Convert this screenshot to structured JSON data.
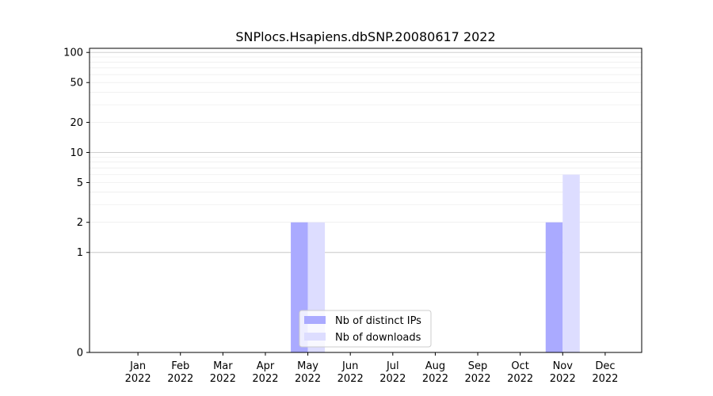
{
  "chart_data": {
    "type": "bar",
    "title": "SNPlocs.Hsapiens.dbSNP.20080617 2022",
    "xlabel": "",
    "ylabel": "",
    "y_scale": "symlog",
    "ylim": [
      0,
      110
    ],
    "y_ticks": [
      0,
      1,
      2,
      5,
      10,
      20,
      50,
      100
    ],
    "y_tick_labels": [
      "0",
      "1",
      "2",
      "5",
      "10",
      "20",
      "50",
      "100"
    ],
    "categories": [
      [
        "Jan",
        "2022"
      ],
      [
        "Feb",
        "2022"
      ],
      [
        "Mar",
        "2022"
      ],
      [
        "Apr",
        "2022"
      ],
      [
        "May",
        "2022"
      ],
      [
        "Jun",
        "2022"
      ],
      [
        "Jul",
        "2022"
      ],
      [
        "Aug",
        "2022"
      ],
      [
        "Sep",
        "2022"
      ],
      [
        "Oct",
        "2022"
      ],
      [
        "Nov",
        "2022"
      ],
      [
        "Dec",
        "2022"
      ]
    ],
    "series": [
      {
        "name": "Nb of distinct IPs",
        "color": "#aaaaff",
        "values": [
          0,
          0,
          0,
          0,
          2,
          0,
          0,
          0,
          0,
          0,
          2,
          0
        ]
      },
      {
        "name": "Nb of downloads",
        "color": "#ddddff",
        "values": [
          0,
          0,
          0,
          0,
          2,
          0,
          0,
          0,
          0,
          0,
          6,
          0
        ]
      }
    ],
    "legend_position": "lower-center",
    "grid": true
  }
}
